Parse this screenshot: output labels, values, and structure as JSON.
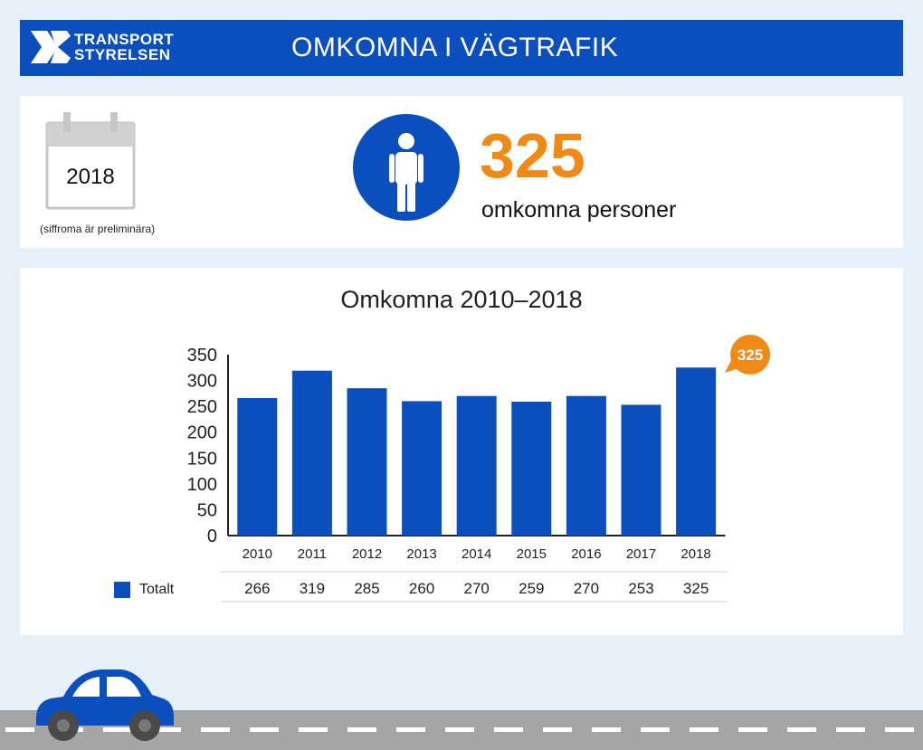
{
  "header": {
    "logo_line1": "TRANSPORT",
    "logo_line2": "STYRELSEN",
    "title": "OMKOMNA I VÄGTRAFIK"
  },
  "summary": {
    "year": "2018",
    "note": "(siffroma är preliminära)",
    "count": "325",
    "count_label": "omkomna personer"
  },
  "chart_data": {
    "type": "bar",
    "title": "Omkomna 2010–2018",
    "categories": [
      "2010",
      "2011",
      "2012",
      "2013",
      "2014",
      "2015",
      "2016",
      "2017",
      "2018"
    ],
    "series": [
      {
        "name": "Totalt",
        "values": [
          266,
          319,
          285,
          260,
          270,
          259,
          270,
          253,
          325
        ]
      }
    ],
    "ylim": [
      0,
      350
    ],
    "yticks": [
      0,
      50,
      100,
      150,
      200,
      250,
      300,
      350
    ],
    "highlight_label": "325",
    "table": {
      "row_label": "Totalt",
      "values": [
        "266",
        "319",
        "285",
        "260",
        "270",
        "259",
        "270",
        "253",
        "325"
      ]
    },
    "colors": {
      "bar": "#0a4fbd",
      "highlight": "#ef8a17"
    }
  },
  "colors": {
    "brand_blue": "#0a4fbd",
    "accent_orange": "#ef8a17",
    "background": "#e6f0f9"
  }
}
